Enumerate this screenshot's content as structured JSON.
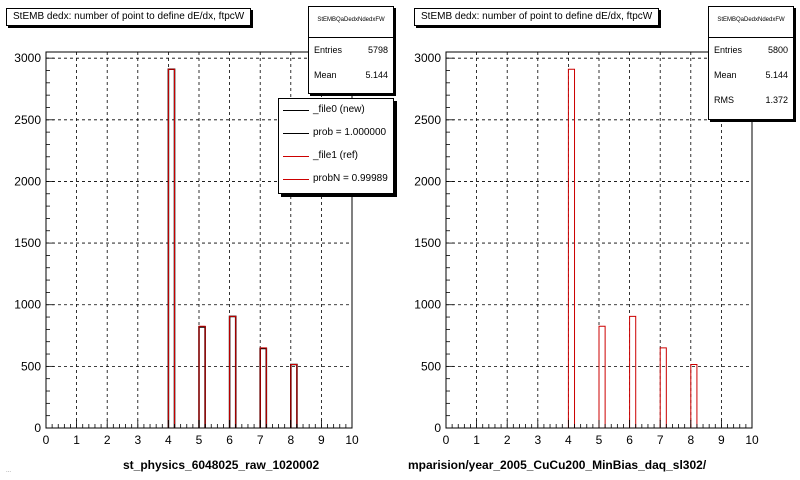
{
  "left_panel": {
    "title": "StEMB dedx: number of point to define dE/dx, ftpcW",
    "stats": {
      "header": "StEMBQaDedxNdedxFW",
      "rows": [
        {
          "label": "Entries",
          "value": "5798"
        },
        {
          "label": "Mean",
          "value": "5.144"
        }
      ]
    },
    "legend": {
      "entries": [
        {
          "label": "_file0 (new)",
          "color": "#000000"
        },
        {
          "label": "prob = 1.000000",
          "color": "#000000"
        },
        {
          "label": "_file1 (ref)",
          "color": "#cc0000"
        },
        {
          "label": "probN = 0.99989",
          "color": "#cc0000"
        }
      ]
    },
    "x_title": "st_physics_6048025_raw_1020002"
  },
  "right_panel": {
    "title": "StEMB dedx: number of point to define dE/dx, ftpcW",
    "stats": {
      "header": "StEMBQaDedxNdedxFW",
      "rows": [
        {
          "label": "Entries",
          "value": "5800"
        },
        {
          "label": "Mean",
          "value": "5.144"
        },
        {
          "label": "RMS",
          "value": "1.372"
        }
      ]
    },
    "x_title": "mparision/year_2005_CuCu200_MinBias_daq_sl302/"
  },
  "footer_text": "...",
  "chart_data": [
    {
      "type": "bar",
      "panel": "left",
      "xlim": [
        0,
        10
      ],
      "ylim": [
        0,
        3050
      ],
      "x_ticks": [
        "0",
        "1",
        "2",
        "3",
        "4",
        "5",
        "6",
        "7",
        "8",
        "9",
        "10"
      ],
      "y_ticks": [
        "0",
        "500",
        "1000",
        "1500",
        "2000",
        "2500",
        "3000"
      ],
      "grid": true,
      "bin_width": 0.2,
      "series": [
        {
          "name": "_file0 (new)",
          "color": "#000000",
          "bins": [
            {
              "x": 4.0,
              "y": 2910
            },
            {
              "x": 5.0,
              "y": 820
            },
            {
              "x": 6.0,
              "y": 905
            },
            {
              "x": 7.0,
              "y": 645
            },
            {
              "x": 8.0,
              "y": 515
            }
          ]
        },
        {
          "name": "_file1 (ref)",
          "color": "#cc0000",
          "bins": [
            {
              "x": 4.0,
              "y": 2910
            },
            {
              "x": 5.0,
              "y": 825
            },
            {
              "x": 6.0,
              "y": 905
            },
            {
              "x": 7.0,
              "y": 650
            },
            {
              "x": 8.0,
              "y": 515
            }
          ]
        }
      ]
    },
    {
      "type": "bar",
      "panel": "right",
      "xlim": [
        0,
        10
      ],
      "ylim": [
        0,
        3050
      ],
      "x_ticks": [
        "0",
        "1",
        "2",
        "3",
        "4",
        "5",
        "6",
        "7",
        "8",
        "9",
        "10"
      ],
      "y_ticks": [
        "0",
        "500",
        "1000",
        "1500",
        "2000",
        "2500",
        "3000"
      ],
      "grid": true,
      "bin_width": 0.2,
      "series": [
        {
          "name": "",
          "color": "#cc0000",
          "bins": [
            {
              "x": 4.0,
              "y": 2910
            },
            {
              "x": 5.0,
              "y": 825
            },
            {
              "x": 6.0,
              "y": 905
            },
            {
              "x": 7.0,
              "y": 650
            },
            {
              "x": 8.0,
              "y": 515
            }
          ]
        }
      ]
    }
  ]
}
